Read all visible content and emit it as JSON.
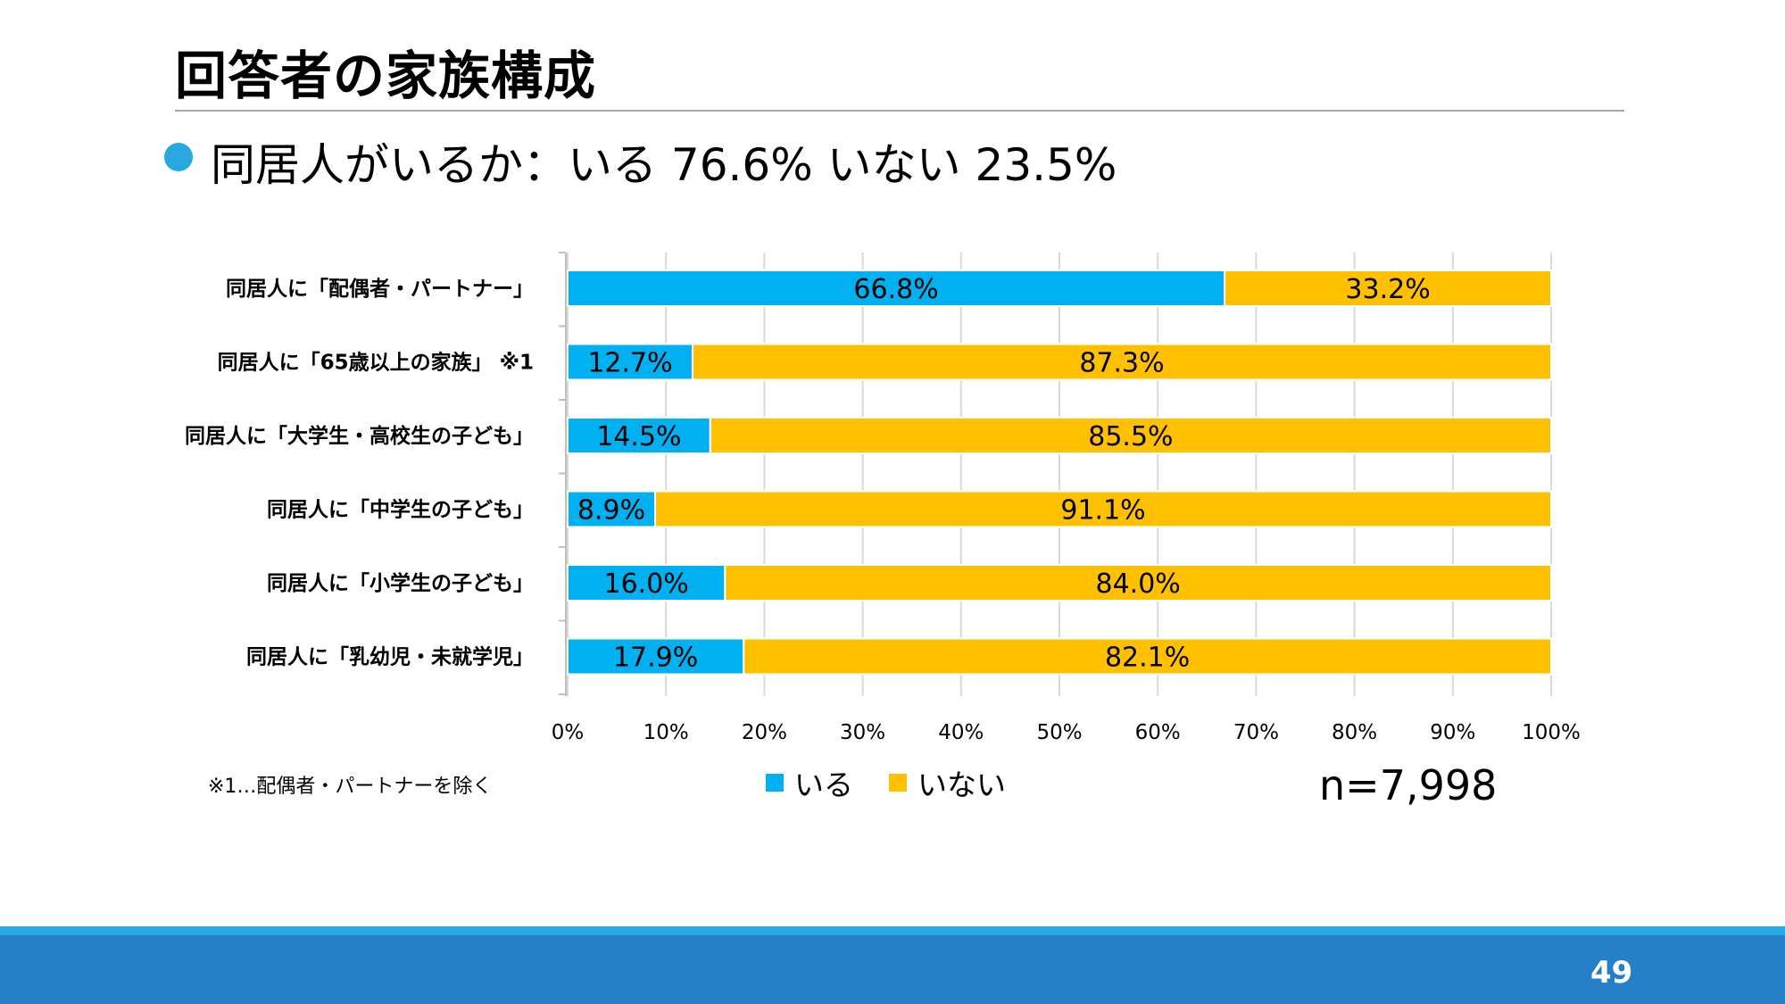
{
  "slide": {
    "title": "回答者の家族構成",
    "bullet": "同居人がいるか：いる 76.6%  いない 23.5%",
    "footnote": "※1…配偶者・パートナーを除く",
    "n_label": "n=7,998",
    "page_number": "49"
  },
  "colors": {
    "iru": "#00b0f0",
    "inai": "#ffc000",
    "accent": "#29a8e0",
    "footer": "#2580c8"
  },
  "chart_data": {
    "type": "bar",
    "orientation": "horizontal",
    "stacked": "100%",
    "categories": [
      "同居人に「配偶者・パートナー」",
      "同居人に「65歳以上の家族」 ※1",
      "同居人に「大学生・高校生の子ども」",
      "同居人に「中学生の子ども」",
      "同居人に「小学生の子ども」",
      "同居人に「乳幼児・未就学児」"
    ],
    "series": [
      {
        "name": "いる",
        "values": [
          66.8,
          12.7,
          14.5,
          8.9,
          16.0,
          17.9
        ],
        "labels": [
          "66.8%",
          "12.7%",
          "14.5%",
          "8.9%",
          "16.0%",
          "17.9%"
        ]
      },
      {
        "name": "いない",
        "values": [
          33.2,
          87.3,
          85.5,
          91.1,
          84.0,
          82.1
        ],
        "labels": [
          "33.2%",
          "87.3%",
          "85.5%",
          "91.1%",
          "84.0%",
          "82.1%"
        ]
      }
    ],
    "xlim": [
      0,
      100
    ],
    "xticks": [
      "0%",
      "10%",
      "20%",
      "30%",
      "40%",
      "50%",
      "60%",
      "70%",
      "80%",
      "90%",
      "100%"
    ],
    "grid": true,
    "legend": "bottom"
  }
}
